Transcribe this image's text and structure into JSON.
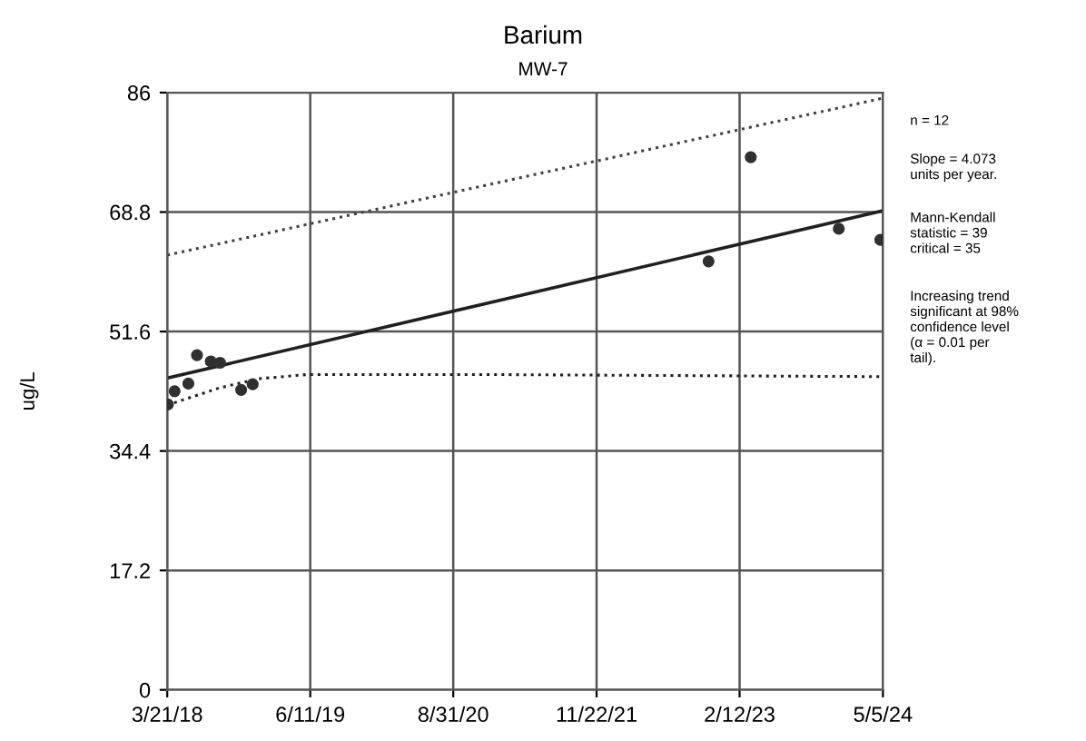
{
  "chart_data": {
    "type": "scatter",
    "title": "Barium",
    "subtitle": "MW-7",
    "ylabel": "ug/L",
    "xlim": [
      "2018-03-21",
      "2024-05-05"
    ],
    "xticks": [
      {
        "value": "2018-03-21",
        "label": "3/21/18"
      },
      {
        "value": "2019-06-11",
        "label": "6/11/19"
      },
      {
        "value": "2020-08-31",
        "label": "8/31/20"
      },
      {
        "value": "2021-11-22",
        "label": "11/22/21"
      },
      {
        "value": "2023-02-12",
        "label": "2/12/23"
      },
      {
        "value": "2024-05-05",
        "label": "5/5/24"
      }
    ],
    "ylim": [
      0,
      86
    ],
    "yticks": [
      0,
      17.2,
      34.4,
      51.6,
      68.8,
      86
    ],
    "grid": true,
    "legend": false,
    "series": [
      {
        "marker": "circle",
        "color": "#303030",
        "x": [
          "2018-03-23",
          "2018-04-13",
          "2018-05-26",
          "2018-06-22",
          "2018-08-04",
          "2018-09-02",
          "2018-11-07",
          "2018-12-13",
          "2022-11-07",
          "2023-03-19",
          "2023-12-19",
          "2024-04-27"
        ],
        "values": [
          41.1,
          43.0,
          44.1,
          48.2,
          47.3,
          47.1,
          43.2,
          44.0,
          61.7,
          76.7,
          66.4,
          64.8
        ]
      },
      {
        "type": "line",
        "line_style": "solid",
        "color": "#202020",
        "x": [
          "2018-03-21",
          "2024-05-05"
        ],
        "values": [
          44.9,
          69.0
        ]
      },
      {
        "type": "line",
        "line_style": "dotted",
        "color": "#404040",
        "x": [
          "2018-03-21",
          "2024-05-05"
        ],
        "values": [
          62.6,
          85.2
        ]
      },
      {
        "type": "line",
        "line_style": "dotted",
        "color": "#202020",
        "x": [
          "2018-03-21",
          "2018-09-01",
          "2019-01-01",
          "2019-06-01",
          "2021-01-01",
          "2024-05-05"
        ],
        "values": [
          41.0,
          43.5,
          44.8,
          45.4,
          45.4,
          45.1
        ]
      }
    ],
    "annotations": [
      "n = 12",
      "Slope = 4.073\nunits per year.",
      "Mann-Kendall\nstatistic = 39\ncritical = 35",
      "Increasing trend\nsignificant at 98%\nconfidence level\n(α = 0.01 per\ntail)."
    ]
  }
}
